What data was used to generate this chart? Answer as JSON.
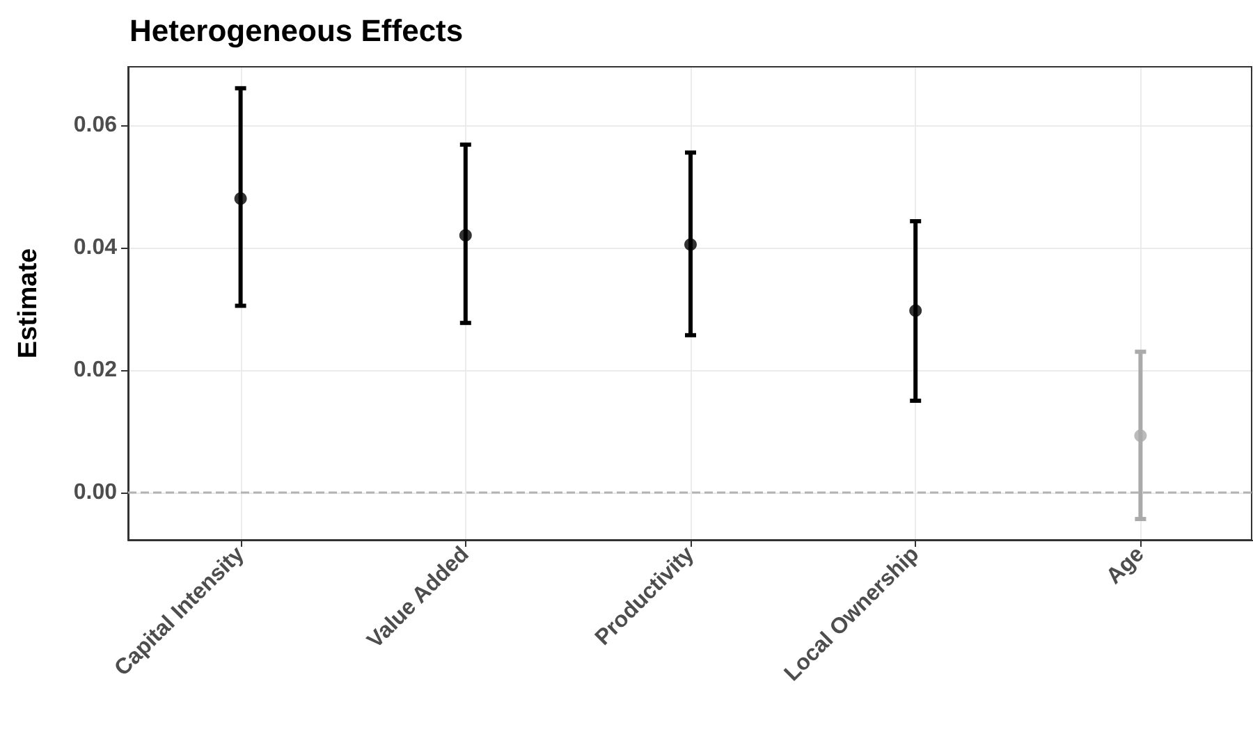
{
  "chart_data": {
    "type": "scatter",
    "title": "Heterogeneous Effects",
    "ylabel": "Estimate",
    "categories": [
      "Capital Intensity",
      "Value Added",
      "Productivity",
      "Local Ownership",
      "Age"
    ],
    "values": [
      0.048,
      0.042,
      0.0405,
      0.0297,
      0.0093
    ],
    "errors": [
      [
        0.0305,
        0.066
      ],
      [
        0.0277,
        0.0568
      ],
      [
        0.0257,
        0.0555
      ],
      [
        0.015,
        0.0443
      ],
      [
        -0.0043,
        0.023
      ]
    ],
    "colors": [
      "#000000",
      "#000000",
      "#000000",
      "#000000",
      "#aaaaaa"
    ],
    "ylim": [
      -0.0077,
      0.0695
    ],
    "yticks": [
      {
        "value": 0,
        "label": "0.00"
      },
      {
        "value": 0.02,
        "label": "0.02"
      },
      {
        "value": 0.04,
        "label": "0.04"
      },
      {
        "value": 0.06,
        "label": "0.06"
      }
    ],
    "ref_lines": [
      {
        "axis": "y",
        "value": 0,
        "color": "#b3b3b3",
        "line_style": "dashed"
      }
    ],
    "grid": true,
    "marker": "circle"
  }
}
